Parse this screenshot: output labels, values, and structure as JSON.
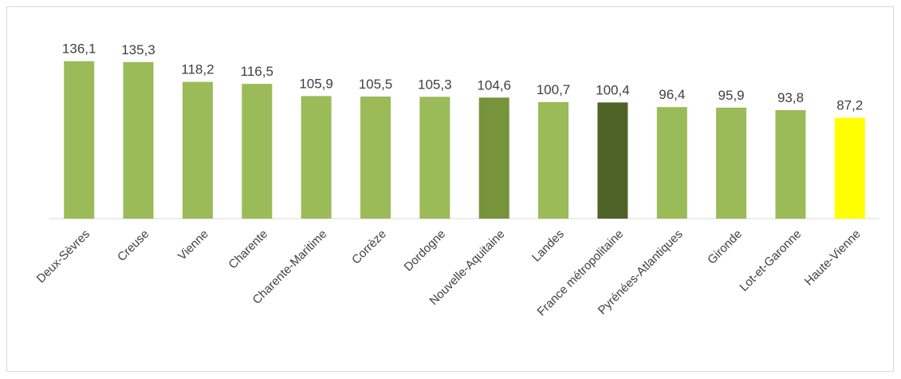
{
  "chart_data": {
    "type": "bar",
    "title": "",
    "xlabel": "",
    "ylabel": "",
    "ylim": [
      0,
      140
    ],
    "grid": false,
    "categories": [
      "Deux-Sèvres",
      "Creuse",
      "Vienne",
      "Charente",
      "Charente-Maritime",
      "Corrèze",
      "Dordogne",
      "Nouvelle-Aquitaine",
      "Landes",
      "France métropolitaine",
      "Pyrénées-Atlantiques",
      "Gironde",
      "Lot-et-Garonne",
      "Haute-Vienne"
    ],
    "values": [
      136.1,
      135.3,
      118.2,
      116.5,
      105.9,
      105.5,
      105.3,
      104.6,
      100.7,
      100.4,
      96.4,
      95.9,
      93.8,
      87.2
    ],
    "value_labels": [
      "136,1",
      "135,3",
      "118,2",
      "116,5",
      "105,9",
      "105,5",
      "105,3",
      "104,6",
      "100,7",
      "100,4",
      "96,4",
      "95,9",
      "93,8",
      "87,2"
    ],
    "bar_colors": [
      "#9bbb59",
      "#9bbb59",
      "#9bbb59",
      "#9bbb59",
      "#9bbb59",
      "#9bbb59",
      "#9bbb59",
      "#77933c",
      "#9bbb59",
      "#4f6228",
      "#9bbb59",
      "#9bbb59",
      "#9bbb59",
      "#ffff00"
    ],
    "axis_color": "#d9d9d9",
    "label_color": "#404040"
  }
}
